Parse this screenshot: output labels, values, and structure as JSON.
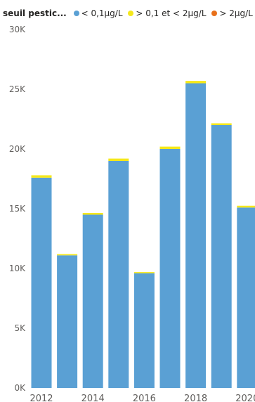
{
  "legend": {
    "title": "seuil pestic...",
    "items": [
      {
        "label": "< 0,1µg/L",
        "color": "#5aa0d4"
      },
      {
        "label": "> 0,1 et < 2µg/L",
        "color": "#f5e81b"
      },
      {
        "label": "> 2µg/L",
        "color": "#e8701a"
      }
    ]
  },
  "chart_data": {
    "type": "bar",
    "stacked": true,
    "categories": [
      "2012",
      "2013",
      "2014",
      "2015",
      "2016",
      "2017",
      "2018",
      "2019",
      "2020"
    ],
    "x_tick_labels": [
      "2012",
      "2014",
      "2016",
      "2018",
      "2020"
    ],
    "series": [
      {
        "name": "< 0,1µg/L",
        "color": "#5aa0d4",
        "values": [
          17600,
          11100,
          14500,
          19000,
          9600,
          20000,
          25500,
          22000,
          15100
        ]
      },
      {
        "name": "> 0,1 et < 2µg/L",
        "color": "#f5e81b",
        "values": [
          200,
          100,
          150,
          200,
          100,
          200,
          200,
          150,
          150
        ]
      },
      {
        "name": "> 2µg/L",
        "color": "#e8701a",
        "values": [
          0,
          0,
          0,
          0,
          0,
          0,
          0,
          0,
          0
        ]
      }
    ],
    "y_ticks": [
      "0K",
      "5K",
      "10K",
      "15K",
      "20K",
      "25K",
      "30K"
    ],
    "ylim": [
      0,
      30000
    ],
    "grid": false,
    "legend_position": "top-left"
  }
}
